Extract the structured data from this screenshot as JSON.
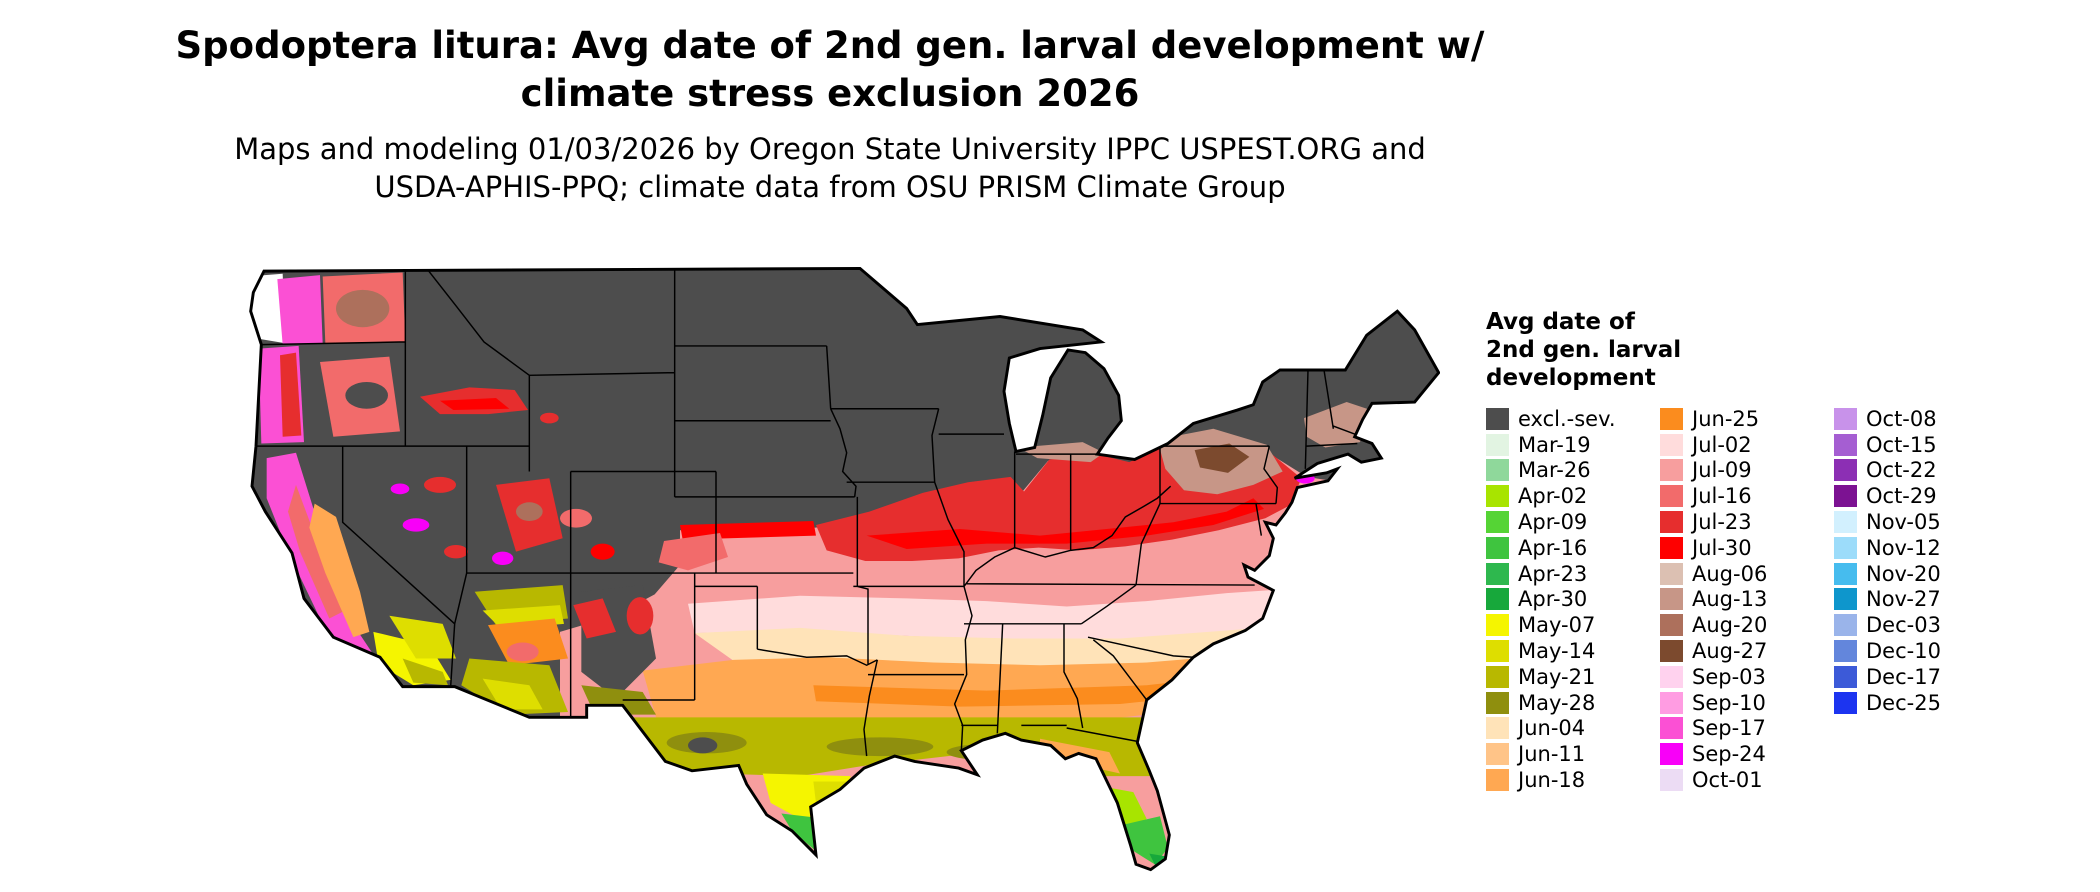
{
  "header": {
    "title_line1": "Spodoptera litura: Avg date of 2nd gen. larval development w/",
    "title_line2": "climate stress exclusion 2026",
    "subtitle_line1": "Maps and modeling 01/03/2026 by Oregon State University IPPC USPEST.ORG and",
    "subtitle_line2": "USDA-APHIS-PPQ; climate data from OSU PRISM Climate Group"
  },
  "legend": {
    "title_lines": [
      "Avg date of",
      "2nd gen. larval",
      "development"
    ],
    "columns": [
      {
        "entries": [
          {
            "label": "excl.-sev.",
            "color": "#4d4d4d"
          },
          {
            "label": "Mar-19",
            "color": "#e2f4e2"
          },
          {
            "label": "Mar-26",
            "color": "#8fd89b"
          },
          {
            "label": "Apr-02",
            "color": "#a8e400"
          },
          {
            "label": "Apr-09",
            "color": "#55d435"
          },
          {
            "label": "Apr-16",
            "color": "#3fc43f"
          },
          {
            "label": "Apr-23",
            "color": "#2eb84e"
          },
          {
            "label": "Apr-30",
            "color": "#17a83b"
          },
          {
            "label": "May-07",
            "color": "#f5f500"
          },
          {
            "label": "May-14",
            "color": "#dede00"
          },
          {
            "label": "May-21",
            "color": "#b8b800"
          },
          {
            "label": "May-28",
            "color": "#8f8f0e"
          },
          {
            "label": "Jun-04",
            "color": "#ffe3b8"
          },
          {
            "label": "Jun-11",
            "color": "#ffc488"
          },
          {
            "label": "Jun-18",
            "color": "#ffa852"
          }
        ]
      },
      {
        "entries": [
          {
            "label": "Jun-25",
            "color": "#fb8c1e"
          },
          {
            "label": "Jul-02",
            "color": "#ffdcdc"
          },
          {
            "label": "Jul-09",
            "color": "#f79e9e"
          },
          {
            "label": "Jul-16",
            "color": "#f26b6b"
          },
          {
            "label": "Jul-23",
            "color": "#e62e2e"
          },
          {
            "label": "Jul-30",
            "color": "#fe0000"
          },
          {
            "label": "Aug-06",
            "color": "#dcc0b2"
          },
          {
            "label": "Aug-13",
            "color": "#c79687"
          },
          {
            "label": "Aug-20",
            "color": "#ad705c"
          },
          {
            "label": "Aug-27",
            "color": "#7c4a2e"
          },
          {
            "label": "Sep-03",
            "color": "#ffd2ee"
          },
          {
            "label": "Sep-10",
            "color": "#ff9ce2"
          },
          {
            "label": "Sep-17",
            "color": "#fb50d4"
          },
          {
            "label": "Sep-24",
            "color": "#f800f8"
          },
          {
            "label": "Oct-01",
            "color": "#ecdcf4"
          }
        ]
      },
      {
        "entries": [
          {
            "label": "Oct-08",
            "color": "#c892ea"
          },
          {
            "label": "Oct-15",
            "color": "#a55ed2"
          },
          {
            "label": "Oct-22",
            "color": "#8c2fb4"
          },
          {
            "label": "Oct-29",
            "color": "#7c1292"
          },
          {
            "label": "Nov-05",
            "color": "#d2f0fe"
          },
          {
            "label": "Nov-12",
            "color": "#9cdcfa"
          },
          {
            "label": "Nov-20",
            "color": "#46bcee"
          },
          {
            "label": "Nov-27",
            "color": "#0e96cc"
          },
          {
            "label": "Dec-03",
            "color": "#9ab4ea"
          },
          {
            "label": "Dec-10",
            "color": "#6386dc"
          },
          {
            "label": "Dec-17",
            "color": "#3c5ad8"
          },
          {
            "label": "Dec-25",
            "color": "#1c34f0"
          }
        ]
      }
    ]
  },
  "map": {
    "region": "continental United States",
    "kind": "raster choropleth of model output with state boundaries",
    "outline_color": "#000000",
    "excluded_color": "#4d4d4d"
  },
  "chart_data": {
    "type": "heatmap",
    "title": "Spodoptera litura: Avg date of 2nd gen. larval development w/ climate stress exclusion 2026",
    "legend_title": "Avg date of 2nd gen. larval development",
    "legend_position": "right",
    "region": "continental United States",
    "categories": [
      "excl.-sev.",
      "Mar-19",
      "Mar-26",
      "Apr-02",
      "Apr-09",
      "Apr-16",
      "Apr-23",
      "Apr-30",
      "May-07",
      "May-14",
      "May-21",
      "May-28",
      "Jun-04",
      "Jun-11",
      "Jun-18",
      "Jun-25",
      "Jul-02",
      "Jul-09",
      "Jul-16",
      "Jul-23",
      "Jul-30",
      "Aug-06",
      "Aug-13",
      "Aug-20",
      "Aug-27",
      "Sep-03",
      "Sep-10",
      "Sep-17",
      "Sep-24",
      "Oct-01",
      "Oct-08",
      "Oct-15",
      "Oct-22",
      "Oct-29",
      "Nov-05",
      "Nov-12",
      "Nov-20",
      "Nov-27",
      "Dec-03",
      "Dec-10",
      "Dec-17",
      "Dec-25"
    ],
    "colors": [
      "#4d4d4d",
      "#e2f4e2",
      "#8fd89b",
      "#a8e400",
      "#55d435",
      "#3fc43f",
      "#2eb84e",
      "#17a83b",
      "#f5f500",
      "#dede00",
      "#b8b800",
      "#8f8f0e",
      "#ffe3b8",
      "#ffc488",
      "#ffa852",
      "#fb8c1e",
      "#ffdcdc",
      "#f79e9e",
      "#f26b6b",
      "#e62e2e",
      "#fe0000",
      "#dcc0b2",
      "#c79687",
      "#ad705c",
      "#7c4a2e",
      "#ffd2ee",
      "#ff9ce2",
      "#fb50d4",
      "#f800f8",
      "#ecdcf4",
      "#c892ea",
      "#a55ed2",
      "#8c2fb4",
      "#7c1292",
      "#d2f0fe",
      "#9cdcfa",
      "#46bcee",
      "#0e96cc",
      "#9ab4ea",
      "#6386dc",
      "#3c5ad8",
      "#1c34f0"
    ]
  }
}
